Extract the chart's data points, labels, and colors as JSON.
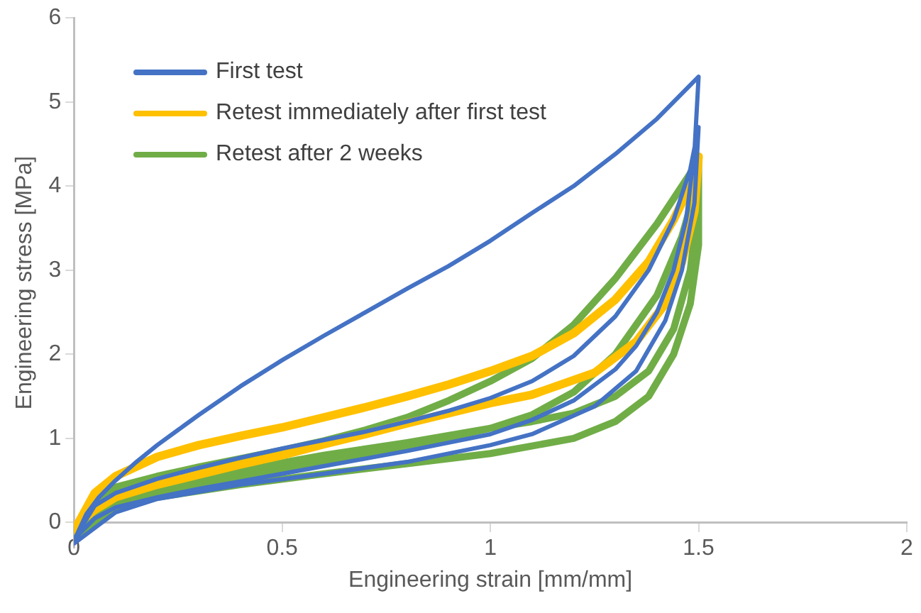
{
  "chart_data": {
    "type": "line",
    "xlabel": "Engineering strain [mm/mm]",
    "ylabel": "Engineering stress [MPa]",
    "xlim": [
      0,
      2
    ],
    "xticks": [
      0,
      0.5,
      1,
      1.5,
      2
    ],
    "ylim": [
      -0.3,
      6
    ],
    "yticks": [
      0,
      1,
      2,
      3,
      4,
      5,
      6
    ],
    "grid": false,
    "legend": "top left",
    "marker": "none",
    "line_style": "solid",
    "series": [
      {
        "name": "First test",
        "color": "#4472c4",
        "x": [
          0,
          0.03,
          0.06,
          0.1,
          0.15,
          0.2,
          0.25,
          0.3,
          0.4,
          0.5,
          0.6,
          0.7,
          0.8,
          0.9,
          1.0,
          1.1,
          1.2,
          1.3,
          1.4,
          1.47,
          1.5,
          1.49,
          1.47,
          1.44,
          1.4,
          1.35,
          1.3,
          1.2,
          1.1,
          1.0,
          0.9,
          0.8,
          0.7,
          0.6,
          0.5,
          0.4,
          0.3,
          0.2,
          0.1,
          0.05,
          0,
          0.05,
          0.1,
          0.2,
          0.3,
          0.4,
          0.5,
          0.6,
          0.7,
          0.8,
          0.9,
          1.0,
          1.1,
          1.2,
          1.3,
          1.38,
          1.44,
          1.48,
          1.5,
          1.49,
          1.46,
          1.42,
          1.35,
          1.25,
          1.1,
          1.0,
          0.8,
          0.6,
          0.4,
          0.2,
          0.1,
          0
        ],
        "values": [
          -0.22,
          0.1,
          0.3,
          0.5,
          0.72,
          0.92,
          1.1,
          1.28,
          1.62,
          1.93,
          2.22,
          2.5,
          2.78,
          3.05,
          3.35,
          3.68,
          4.0,
          4.38,
          4.8,
          5.15,
          5.3,
          4.4,
          3.6,
          3.0,
          2.5,
          2.1,
          1.82,
          1.45,
          1.22,
          1.05,
          0.95,
          0.85,
          0.76,
          0.67,
          0.58,
          0.49,
          0.4,
          0.3,
          0.18,
          0.05,
          -0.2,
          0.2,
          0.35,
          0.52,
          0.65,
          0.77,
          0.88,
          0.98,
          1.08,
          1.2,
          1.33,
          1.48,
          1.68,
          1.98,
          2.45,
          3.0,
          3.6,
          4.2,
          4.7,
          3.8,
          3.0,
          2.4,
          1.8,
          1.38,
          1.05,
          0.92,
          0.72,
          0.58,
          0.45,
          0.28,
          0.12,
          -0.25
        ]
      },
      {
        "name": "Retest immediately after first test",
        "color": "#ffc000",
        "x": [
          0,
          0.05,
          0.1,
          0.2,
          0.3,
          0.4,
          0.5,
          0.6,
          0.7,
          0.8,
          0.9,
          1.0,
          1.1,
          1.2,
          1.3,
          1.38,
          1.44,
          1.48,
          1.5,
          1.49,
          1.46,
          1.42,
          1.35,
          1.25,
          1.1,
          1.0,
          0.9,
          0.8,
          0.7,
          0.6,
          0.5,
          0.4,
          0.3,
          0.2,
          0.1,
          0.05,
          0
        ],
        "values": [
          -0.1,
          0.35,
          0.55,
          0.78,
          0.92,
          1.03,
          1.13,
          1.25,
          1.37,
          1.5,
          1.64,
          1.8,
          1.98,
          2.25,
          2.65,
          3.1,
          3.6,
          4.0,
          4.35,
          3.7,
          3.1,
          2.6,
          2.15,
          1.78,
          1.52,
          1.42,
          1.3,
          1.18,
          1.05,
          0.93,
          0.8,
          0.69,
          0.57,
          0.45,
          0.3,
          0.15,
          -0.05
        ]
      },
      {
        "name": "Retest after 2 weeks",
        "color": "#70ad47",
        "x": [
          0,
          0.05,
          0.1,
          0.2,
          0.3,
          0.4,
          0.5,
          0.6,
          0.7,
          0.8,
          0.9,
          1.0,
          1.1,
          1.2,
          1.3,
          1.4,
          1.5,
          1.5,
          1.48,
          1.44,
          1.38,
          1.3,
          1.2,
          1.1,
          1.0,
          0.8,
          0.6,
          0.4,
          0.2,
          0.1,
          0,
          0.1,
          0.2,
          0.4,
          0.6,
          0.8,
          1.0,
          1.1,
          1.2,
          1.3,
          1.4,
          1.46,
          1.5,
          1.5,
          1.48,
          1.44,
          1.38,
          1.3,
          1.2,
          1.0,
          0.8,
          0.6,
          0.4,
          0.2,
          0.1,
          0
        ],
        "values": [
          -0.15,
          0.25,
          0.42,
          0.55,
          0.66,
          0.76,
          0.86,
          0.97,
          1.1,
          1.25,
          1.45,
          1.68,
          1.95,
          2.35,
          2.9,
          3.55,
          4.3,
          3.8,
          3.0,
          2.3,
          1.8,
          1.5,
          1.3,
          1.2,
          1.12,
          0.95,
          0.8,
          0.62,
          0.42,
          0.28,
          -0.1,
          0.2,
          0.35,
          0.55,
          0.72,
          0.9,
          1.12,
          1.28,
          1.55,
          2.0,
          2.7,
          3.4,
          4.1,
          3.3,
          2.6,
          2.0,
          1.5,
          1.2,
          1.0,
          0.82,
          0.7,
          0.58,
          0.45,
          0.3,
          0.15,
          -0.2
        ]
      }
    ]
  }
}
